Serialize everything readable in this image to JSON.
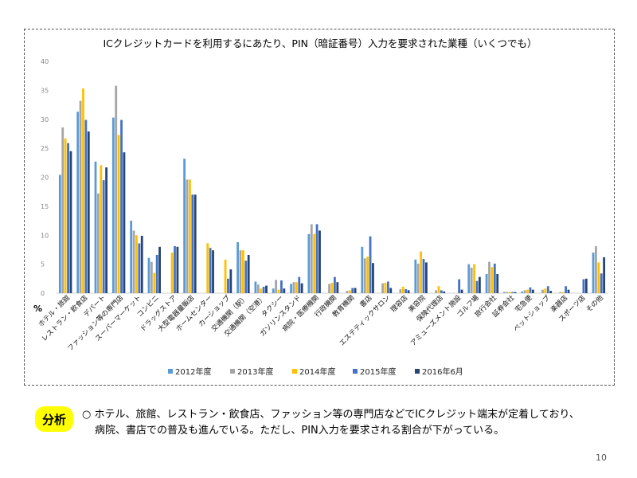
{
  "chart_data": {
    "type": "bar",
    "title": "ICクレジットカードを利用するにあたり、PIN（暗証番号）入力を要求された業種（いくつでも）",
    "unit_label": "%",
    "ylim": [
      0,
      40
    ],
    "yticks": [
      0,
      5,
      10,
      15,
      20,
      25,
      30,
      35,
      40
    ],
    "grid": false,
    "legend_position": "bottom",
    "categories": [
      "ホテル・旅館",
      "レストラン・飲食店",
      "デパート",
      "ファッション等の専門店",
      "スーパーマーケット",
      "コンビニ",
      "ドラッグストア",
      "大型電器量販店",
      "ホームセンター",
      "カーショップ",
      "交通機関（駅）",
      "交通機関（空港）",
      "タクシー",
      "ガソリンスタンド",
      "病院・医療機関",
      "行政機関",
      "教育機関",
      "書店",
      "エステティックサロン",
      "理容店",
      "美容院",
      "保険代理店",
      "アミューズメント施設",
      "ゴルフ場",
      "旅行会社",
      "証券会社",
      "宅急便",
      "ペットショップ",
      "楽器店",
      "スポーツ店",
      "その他"
    ],
    "series": [
      {
        "name": "2012年度",
        "color": "#5b9bd5",
        "values": [
          20.4,
          31.3,
          22.7,
          30.3,
          12.5,
          6.1,
          0,
          23.2,
          0,
          0,
          8.8,
          2.0,
          0.8,
          1.6,
          10.2,
          0,
          0,
          8.0,
          0,
          0,
          5.8,
          0,
          0,
          5.0,
          3.3,
          0.2,
          0.3,
          0,
          0,
          0,
          7.0
        ]
      },
      {
        "name": "2013年度",
        "color": "#a5a5a5",
        "values": [
          28.6,
          33.2,
          17.2,
          35.8,
          10.8,
          5.4,
          0,
          19.6,
          0,
          0,
          7.4,
          1.5,
          2.3,
          1.9,
          11.9,
          1.6,
          0.4,
          6.0,
          1.7,
          0.7,
          5.1,
          0.5,
          0,
          4.4,
          5.4,
          0.2,
          0.5,
          0.6,
          0.2,
          0,
          8.1
        ]
      },
      {
        "name": "2014年度",
        "color": "#ffc000",
        "values": [
          26.7,
          35.3,
          22.1,
          27.3,
          10.0,
          3.5,
          7.0,
          19.6,
          8.6,
          5.8,
          7.4,
          0.8,
          0.6,
          1.9,
          10.2,
          1.8,
          0.5,
          6.3,
          1.8,
          1.1,
          7.2,
          1.2,
          0,
          5.0,
          4.5,
          0.2,
          0.6,
          0.8,
          0.2,
          0,
          5.3
        ]
      },
      {
        "name": "2015年度",
        "color": "#4472c4",
        "values": [
          25.9,
          29.9,
          19.5,
          29.9,
          8.6,
          6.6,
          8.1,
          17.0,
          7.8,
          2.5,
          5.6,
          1.1,
          2.2,
          2.8,
          11.9,
          2.8,
          0.9,
          9.8,
          2.0,
          0.7,
          5.9,
          0.5,
          2.4,
          2.1,
          5.1,
          0.2,
          1.0,
          1.2,
          1.2,
          2.4,
          3.4
        ]
      },
      {
        "name": "2016年6月",
        "color": "#264478",
        "values": [
          24.5,
          27.9,
          21.7,
          24.3,
          9.9,
          8.0,
          8.0,
          17.0,
          7.4,
          4.1,
          6.6,
          1.3,
          0.8,
          1.7,
          10.8,
          1.9,
          0.9,
          5.2,
          0.9,
          0.5,
          5.3,
          0.3,
          0.6,
          2.8,
          3.3,
          0.2,
          0.6,
          0.4,
          0.6,
          2.5,
          6.2
        ]
      }
    ]
  },
  "analysis": {
    "badge": "分析",
    "line1": "○ ホテル、旅館、レストラン・飲食店、ファッション等の専門店などでICクレジット端末が定着しており、",
    "line2": "病院、書店での普及も進んでいる。ただし、PIN入力を要求される割合が下がっている。"
  },
  "page_number": "10"
}
